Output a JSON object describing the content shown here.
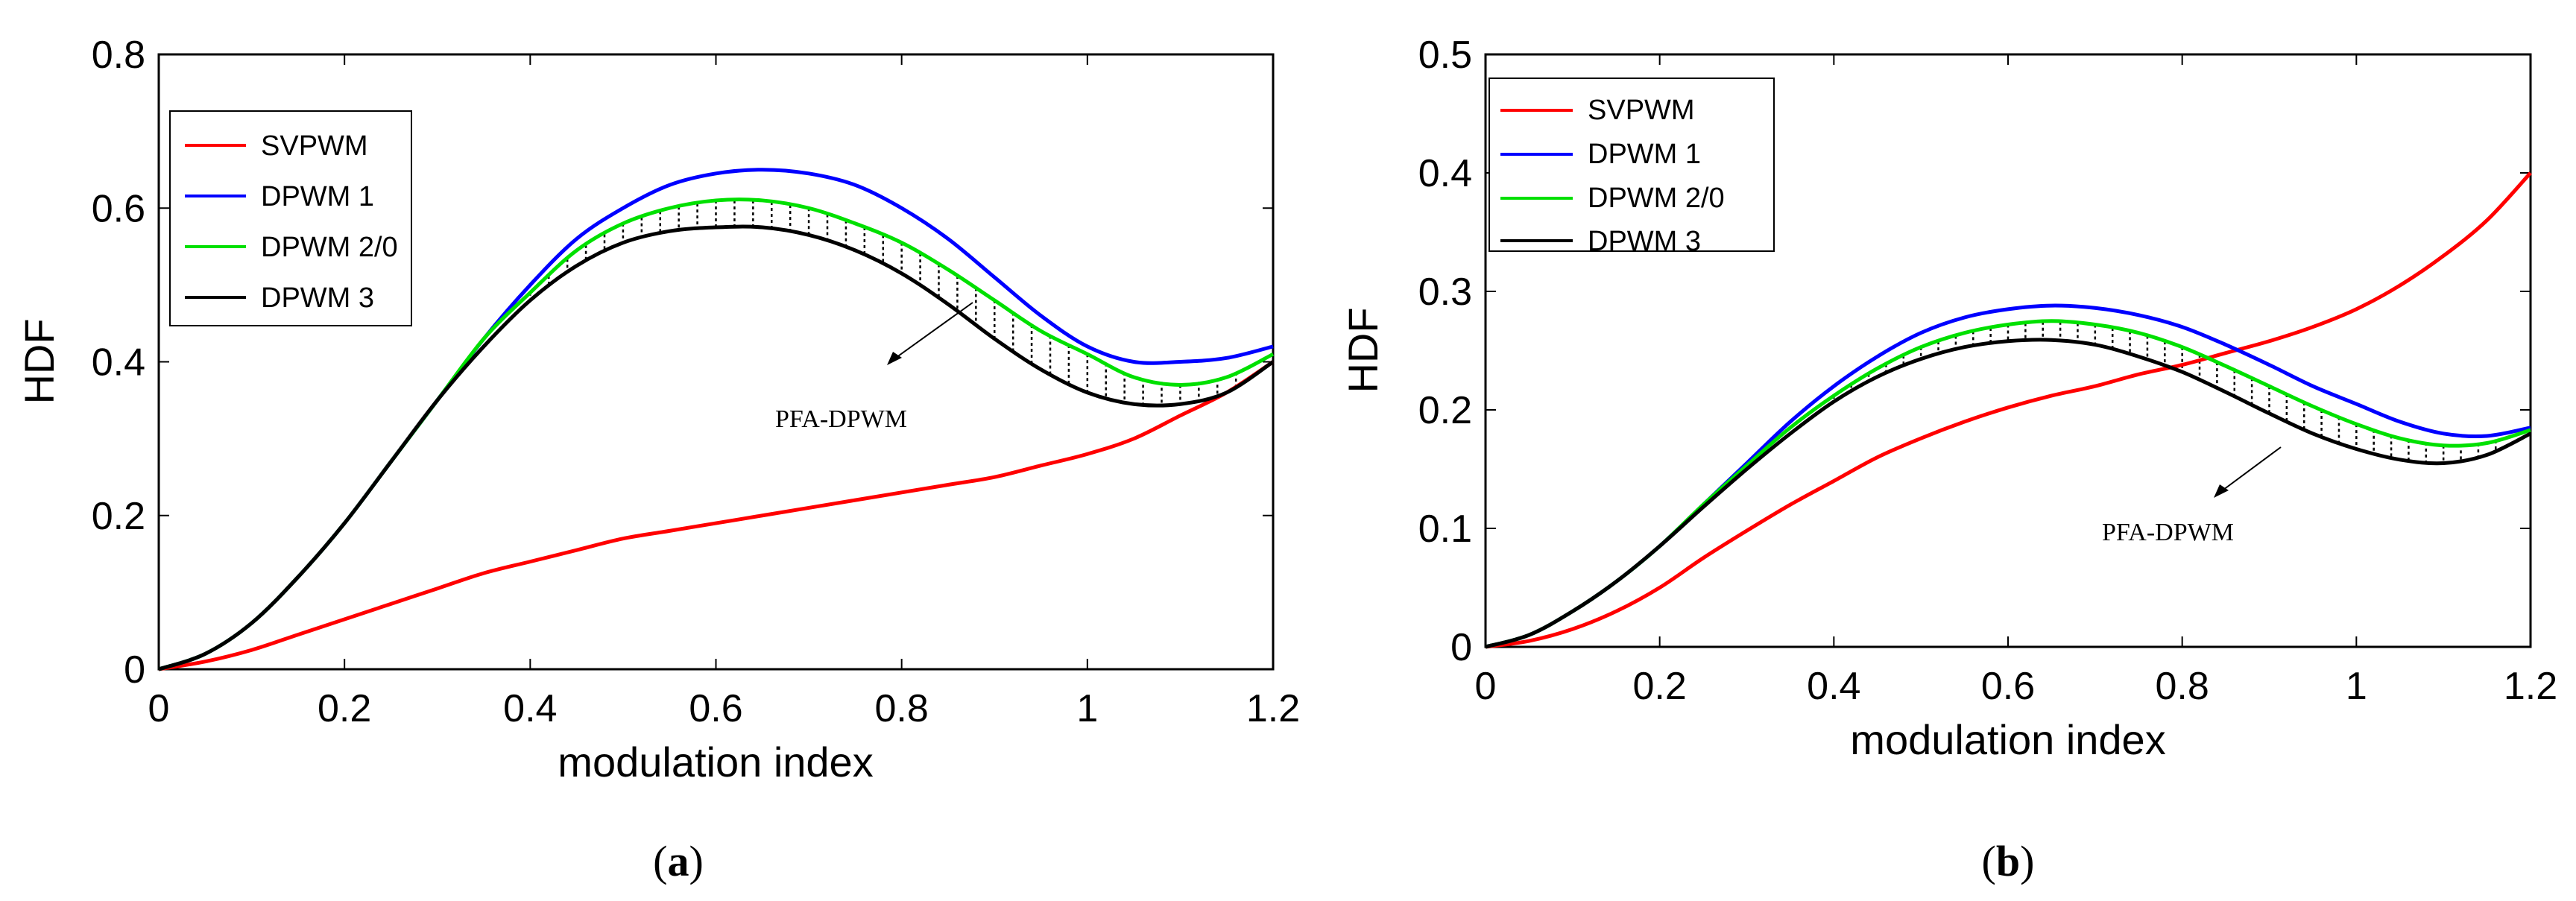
{
  "chart_data": [
    {
      "type": "line",
      "panel_label": "a",
      "xlabel": "modulation index",
      "ylabel": "HDF",
      "xlim": [
        0,
        1.2
      ],
      "ylim": [
        0,
        0.8
      ],
      "xticks": [
        "0",
        "0.2",
        "0.4",
        "0.6",
        "0.8",
        "1",
        "1.2"
      ],
      "yticks": [
        "0",
        "0.2",
        "0.4",
        "0.6",
        "0.8"
      ],
      "legend_position": "top-left",
      "x": [
        0,
        0.05,
        0.1,
        0.15,
        0.2,
        0.25,
        0.3,
        0.35,
        0.4,
        0.45,
        0.5,
        0.55,
        0.6,
        0.65,
        0.7,
        0.75,
        0.8,
        0.85,
        0.9,
        0.95,
        1.0,
        1.05,
        1.1,
        1.15,
        1.2
      ],
      "series": [
        {
          "name": "SVPWM",
          "color": "#ff0000",
          "values": [
            0,
            0.01,
            0.025,
            0.045,
            0.065,
            0.085,
            0.105,
            0.125,
            0.14,
            0.155,
            0.17,
            0.18,
            0.19,
            0.2,
            0.21,
            0.22,
            0.23,
            0.24,
            0.25,
            0.265,
            0.28,
            0.3,
            0.33,
            0.36,
            0.4
          ]
        },
        {
          "name": "DPWM 1",
          "color": "#0000ff",
          "values": [
            0,
            0.02,
            0.06,
            0.12,
            0.19,
            0.27,
            0.35,
            0.43,
            0.5,
            0.56,
            0.6,
            0.63,
            0.645,
            0.65,
            0.645,
            0.63,
            0.6,
            0.56,
            0.51,
            0.46,
            0.42,
            0.4,
            0.4,
            0.405,
            0.42
          ]
        },
        {
          "name": "DPWM 2/0",
          "color": "#00e000",
          "values": [
            0,
            0.02,
            0.06,
            0.12,
            0.19,
            0.27,
            0.35,
            0.43,
            0.49,
            0.545,
            0.58,
            0.6,
            0.61,
            0.61,
            0.6,
            0.58,
            0.555,
            0.52,
            0.48,
            0.44,
            0.41,
            0.38,
            0.37,
            0.38,
            0.41
          ]
        },
        {
          "name": "DPWM 3",
          "color": "#000000",
          "values": [
            0,
            0.02,
            0.06,
            0.12,
            0.19,
            0.27,
            0.35,
            0.42,
            0.48,
            0.525,
            0.555,
            0.57,
            0.575,
            0.575,
            0.565,
            0.545,
            0.515,
            0.475,
            0.43,
            0.39,
            0.36,
            0.345,
            0.345,
            0.36,
            0.4
          ]
        }
      ],
      "shaded_region": {
        "between": [
          "DPWM 2/0",
          "DPWM 3"
        ],
        "style": "dotted vertical hatch"
      },
      "annotation": {
        "text": "PFA-DPWM",
        "arrow_to": [
          0.93,
          0.42
        ],
        "text_at": [
          0.82,
          0.33
        ]
      }
    },
    {
      "type": "line",
      "panel_label": "b",
      "xlabel": "modulation index",
      "ylabel": "HDF",
      "xlim": [
        0,
        1.2
      ],
      "ylim": [
        0,
        0.5
      ],
      "xticks": [
        "0",
        "0.2",
        "0.4",
        "0.6",
        "0.8",
        "1",
        "1.2"
      ],
      "yticks": [
        "0",
        "0.1",
        "0.2",
        "0.3",
        "0.4",
        "0.5"
      ],
      "legend_position": "top-left",
      "x": [
        0,
        0.05,
        0.1,
        0.15,
        0.2,
        0.25,
        0.3,
        0.35,
        0.4,
        0.45,
        0.5,
        0.55,
        0.6,
        0.65,
        0.7,
        0.75,
        0.8,
        0.85,
        0.9,
        0.95,
        1.0,
        1.05,
        1.1,
        1.15,
        1.2
      ],
      "series": [
        {
          "name": "SVPWM",
          "color": "#ff0000",
          "values": [
            0,
            0.005,
            0.015,
            0.03,
            0.05,
            0.075,
            0.098,
            0.12,
            0.14,
            0.16,
            0.176,
            0.19,
            0.202,
            0.212,
            0.22,
            0.23,
            0.238,
            0.248,
            0.258,
            0.27,
            0.285,
            0.305,
            0.33,
            0.36,
            0.4
          ]
        },
        {
          "name": "DPWM 1",
          "color": "#0000ff",
          "values": [
            0,
            0.01,
            0.03,
            0.055,
            0.085,
            0.12,
            0.155,
            0.19,
            0.22,
            0.245,
            0.265,
            0.278,
            0.285,
            0.288,
            0.286,
            0.28,
            0.27,
            0.255,
            0.238,
            0.22,
            0.205,
            0.19,
            0.18,
            0.178,
            0.185
          ]
        },
        {
          "name": "DPWM 2/0",
          "color": "#00e000",
          "values": [
            0,
            0.01,
            0.03,
            0.055,
            0.085,
            0.12,
            0.153,
            0.185,
            0.212,
            0.235,
            0.253,
            0.265,
            0.272,
            0.275,
            0.272,
            0.265,
            0.253,
            0.237,
            0.22,
            0.203,
            0.188,
            0.176,
            0.17,
            0.172,
            0.183
          ]
        },
        {
          "name": "DPWM 3",
          "color": "#000000",
          "values": [
            0,
            0.01,
            0.03,
            0.055,
            0.085,
            0.118,
            0.15,
            0.18,
            0.207,
            0.228,
            0.243,
            0.253,
            0.258,
            0.259,
            0.255,
            0.245,
            0.232,
            0.215,
            0.197,
            0.18,
            0.167,
            0.158,
            0.155,
            0.162,
            0.18
          ]
        }
      ],
      "shaded_region": {
        "between": [
          "DPWM 2/0",
          "DPWM 3"
        ],
        "style": "dotted vertical hatch"
      },
      "annotation": {
        "text": "PFA-DPWM",
        "arrow_to": [
          0.8,
          0.227
        ],
        "text_at": [
          0.7,
          0.115
        ]
      }
    }
  ],
  "captions": [
    "a",
    "b"
  ]
}
